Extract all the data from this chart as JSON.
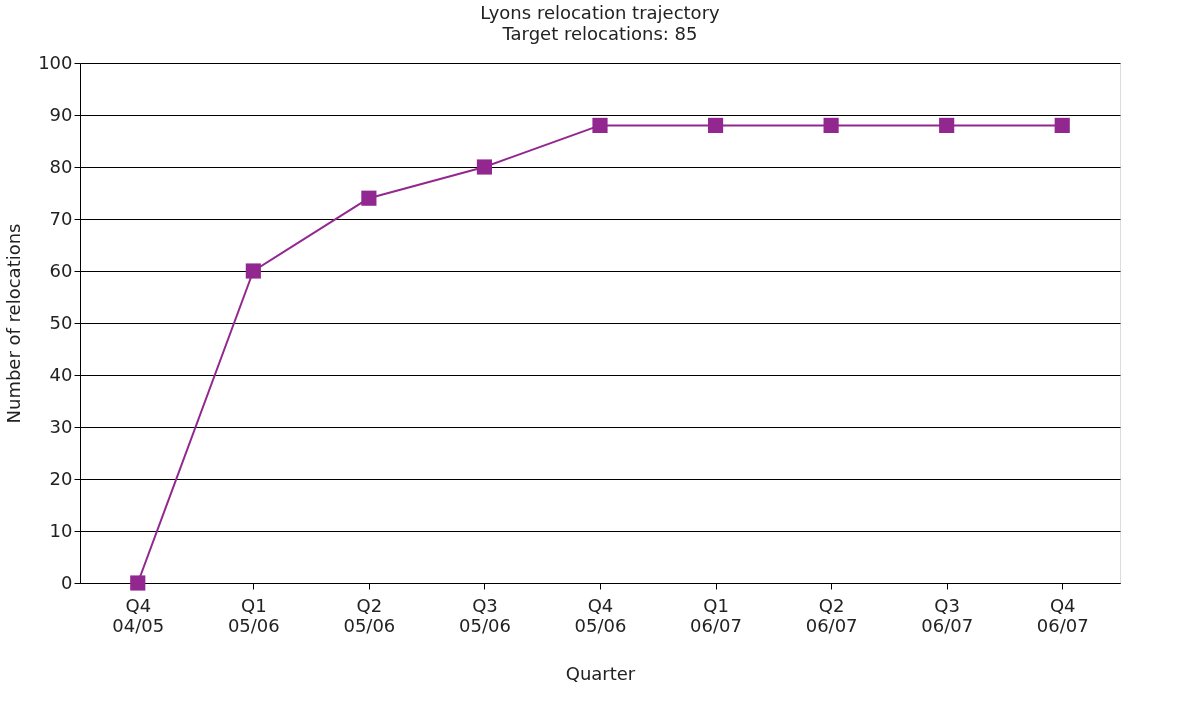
{
  "chart_data": {
    "type": "line",
    "title": "Lyons relocation trajectory",
    "subtitle": "Target relocations: 85",
    "xlabel": "Quarter",
    "ylabel": "Number of relocations",
    "categories": [
      "Q4 04/05",
      "Q1 05/06",
      "Q2 05/06",
      "Q3 05/06",
      "Q4 05/06",
      "Q1 06/07",
      "Q2 06/07",
      "Q3 06/07",
      "Q4 06/07"
    ],
    "series": [
      {
        "color": "#92278f",
        "values": [
          0,
          60,
          74,
          80,
          88,
          88,
          88,
          88,
          88
        ]
      }
    ],
    "ylim": [
      0,
      100
    ],
    "yticks": [
      0,
      10,
      20,
      30,
      40,
      50,
      60,
      70,
      80,
      90,
      100
    ],
    "grid": "y",
    "marker": "square",
    "line_style": "solid"
  }
}
